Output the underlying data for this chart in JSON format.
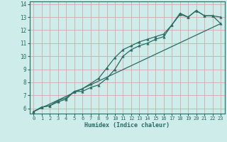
{
  "xlabel": "Humidex (Indice chaleur)",
  "bg_color": "#ceecea",
  "grid_color": "#d4a8a8",
  "line_color": "#2a6b62",
  "xlim": [
    -0.5,
    23.5
  ],
  "ylim": [
    5.6,
    14.2
  ],
  "xticks": [
    0,
    1,
    2,
    3,
    4,
    5,
    6,
    7,
    8,
    9,
    10,
    11,
    12,
    13,
    14,
    15,
    16,
    17,
    18,
    19,
    20,
    21,
    22,
    23
  ],
  "yticks": [
    6,
    7,
    8,
    9,
    10,
    11,
    12,
    13,
    14
  ],
  "series1_x": [
    0,
    1,
    2,
    3,
    4,
    5,
    6,
    7,
    8,
    9,
    10,
    11,
    12,
    13,
    14,
    15,
    16,
    17,
    18,
    19,
    20,
    21,
    22,
    23
  ],
  "series1_y": [
    5.75,
    6.1,
    6.2,
    6.5,
    6.7,
    7.3,
    7.3,
    7.6,
    7.8,
    8.3,
    9.0,
    10.0,
    10.5,
    10.8,
    11.0,
    11.3,
    11.5,
    12.4,
    13.2,
    13.0,
    13.5,
    13.1,
    13.1,
    13.0
  ],
  "series2_x": [
    0,
    1,
    2,
    3,
    4,
    5,
    6,
    7,
    8,
    9,
    10,
    11,
    12,
    13,
    14,
    15,
    16,
    17,
    18,
    19,
    20,
    21,
    22,
    23
  ],
  "series2_y": [
    5.75,
    6.1,
    6.2,
    6.6,
    6.8,
    7.3,
    7.5,
    7.9,
    8.3,
    9.1,
    9.9,
    10.5,
    10.8,
    11.1,
    11.3,
    11.5,
    11.7,
    12.4,
    13.3,
    13.0,
    13.5,
    13.1,
    13.1,
    12.5
  ],
  "series3_x": [
    0,
    23
  ],
  "series3_y": [
    5.75,
    12.5
  ]
}
